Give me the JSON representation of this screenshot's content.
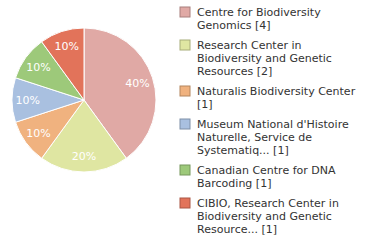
{
  "chart_data": {
    "type": "pie",
    "categories": [
      "Centre for Biodiversity Genomics [4]",
      "Research Center in Biodiversity and Genetic Resources [2]",
      "Naturalis Biodiversity Center [1]",
      "Museum National d'Histoire Naturelle, Service de Systematiq... [1]",
      "Canadian Centre for DNA Barcoding [1]",
      "CIBIO, Research Center in Biodiversity and Genetic Resource... [1]"
    ],
    "values": [
      40,
      20,
      10,
      10,
      10,
      10
    ],
    "value_labels": [
      "40%",
      "20%",
      "10%",
      "10%",
      "10%",
      "10%"
    ],
    "colors": [
      "#e0a9a5",
      "#dfe6a2",
      "#f0b27f",
      "#a9c0e0",
      "#9dc97a",
      "#e2735a"
    ],
    "data_labels": true,
    "legend": "right"
  }
}
